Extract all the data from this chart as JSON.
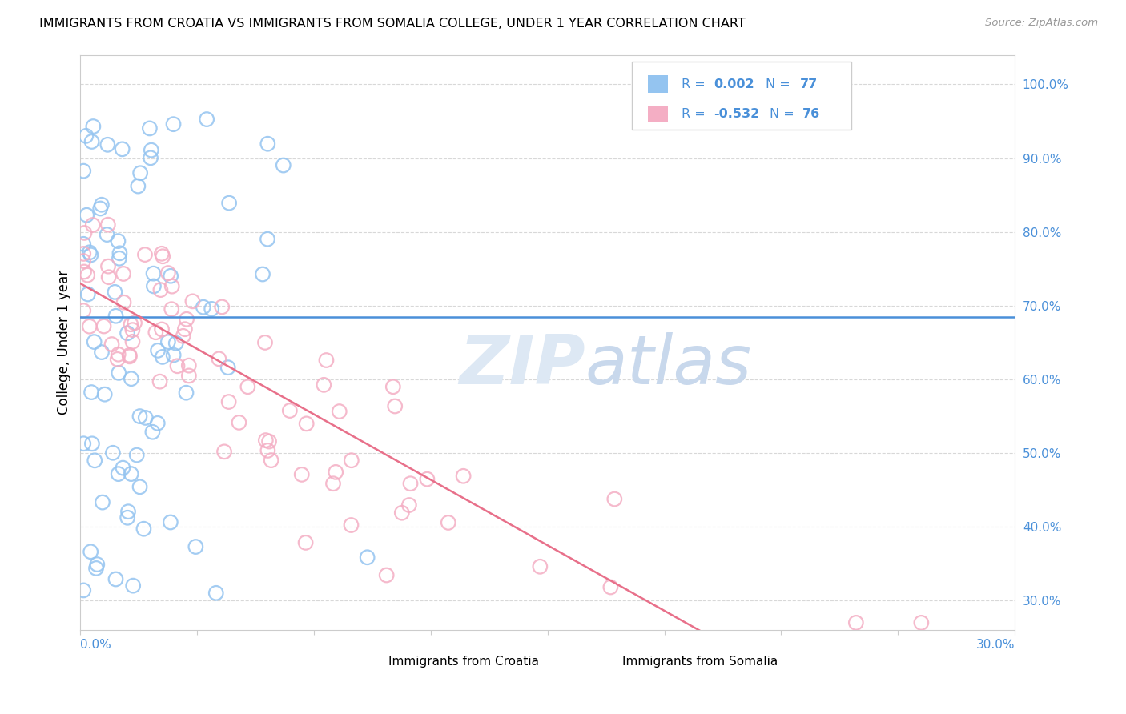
{
  "title": "IMMIGRANTS FROM CROATIA VS IMMIGRANTS FROM SOMALIA COLLEGE, UNDER 1 YEAR CORRELATION CHART",
  "source": "Source: ZipAtlas.com",
  "ylabel": "College, Under 1 year",
  "yticks_right_vals": [
    0.3,
    0.4,
    0.5,
    0.6,
    0.7,
    0.8,
    0.9,
    1.0
  ],
  "xlim": [
    0.0,
    0.3
  ],
  "ylim": [
    0.26,
    1.04
  ],
  "croatia_R": 0.002,
  "croatia_N": 77,
  "somalia_R": -0.532,
  "somalia_N": 76,
  "croatia_color": "#94c4f0",
  "somalia_color": "#f4aec4",
  "croatia_line_color": "#4a90d9",
  "somalia_line_color": "#e8708a",
  "legend_color": "#4a90d9",
  "grid_color": "#d8d8d8",
  "watermark_color": "#dde8f4",
  "fig_width": 14.06,
  "fig_height": 8.92,
  "dpi": 100
}
